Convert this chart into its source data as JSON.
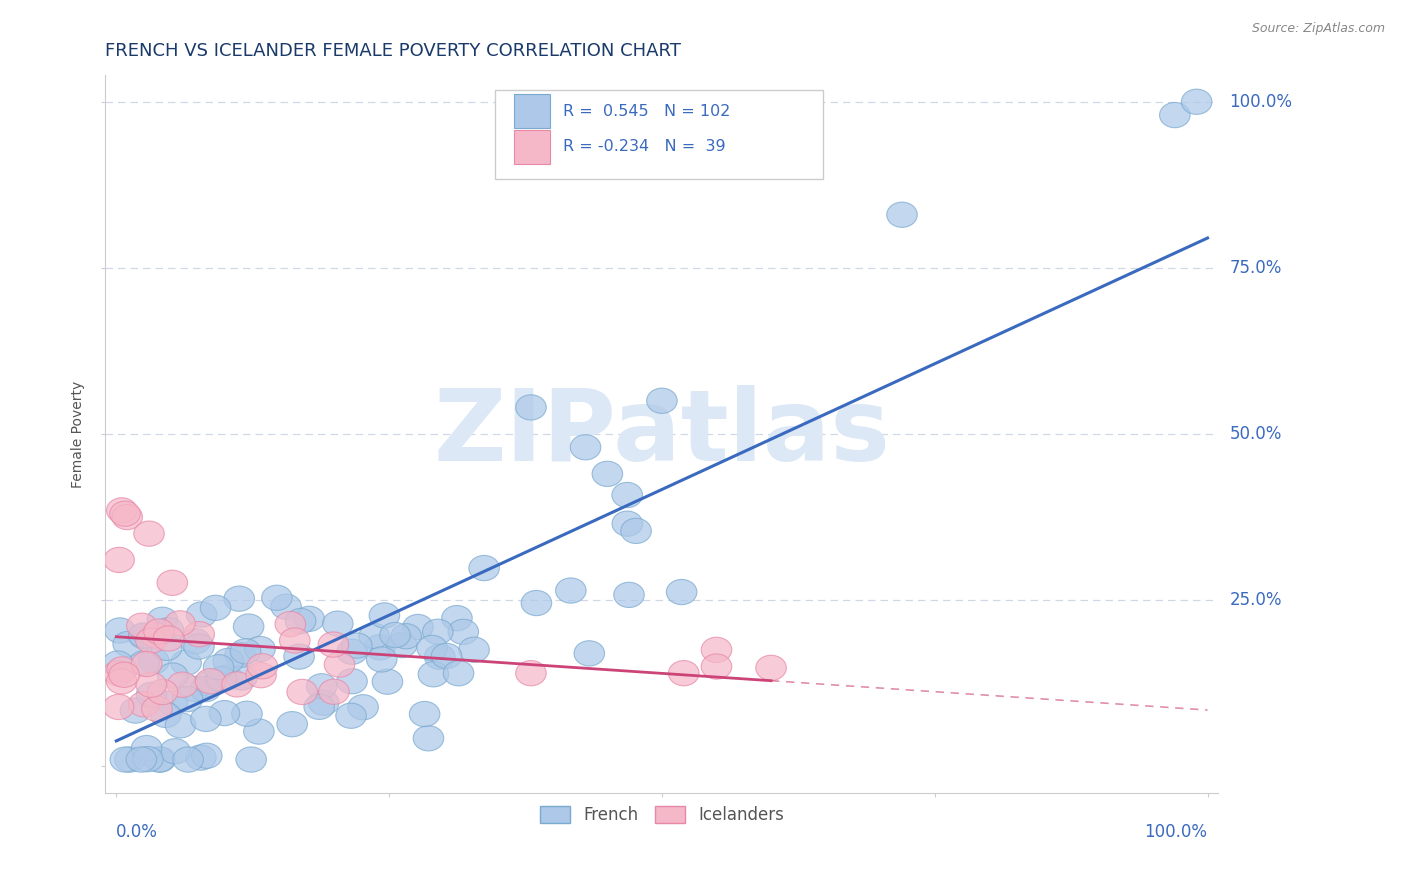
{
  "title": "FRENCH VS ICELANDER FEMALE POVERTY CORRELATION CHART",
  "source": "Source: ZipAtlas.com",
  "ylabel": "Female Poverty",
  "french_R": 0.545,
  "french_N": 102,
  "icelander_R": -0.234,
  "icelander_N": 39,
  "blue_color": "#adc8e8",
  "blue_edge": "#7aaad0",
  "pink_color": "#f5b8c8",
  "pink_edge": "#e888a8",
  "trend_blue": "#3a6abf",
  "trend_pink": "#cc4477",
  "background": "#ffffff",
  "grid_color": "#d0d8e8",
  "title_color": "#1a3a6a",
  "axis_label_color": "#3a6abf",
  "watermark_color": "#dce8f5",
  "source_color": "#888888",
  "ylabel_color": "#555555",
  "legend_border_color": "#cccccc",
  "bottom_label_color": "#555555"
}
